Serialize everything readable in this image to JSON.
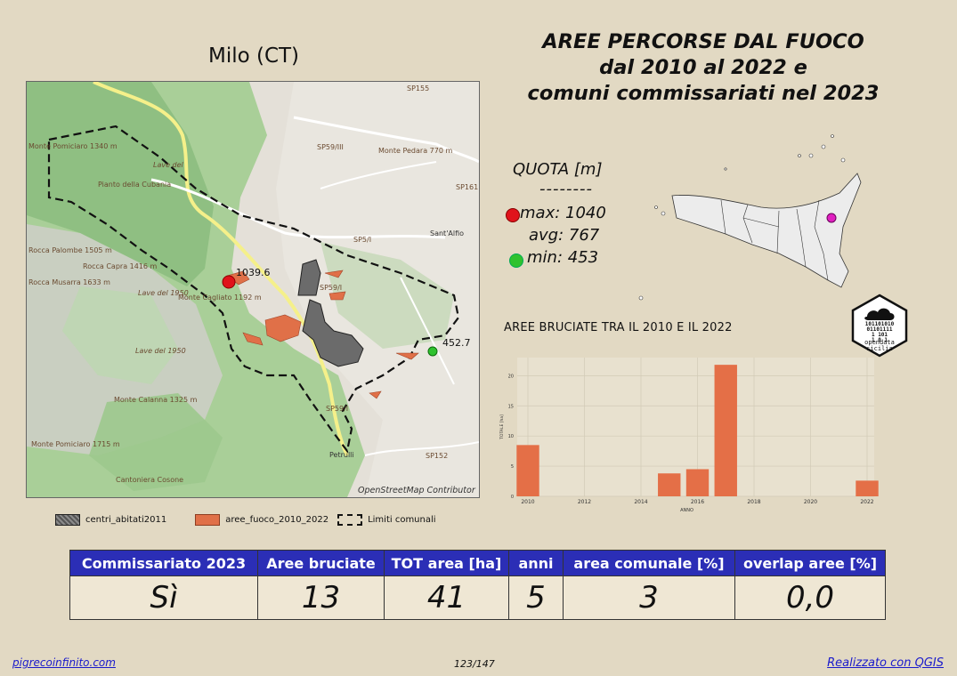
{
  "municipality": "Milo (CT)",
  "title_lines": [
    "AREE PERCORSE DAL FUOCO",
    "dal 2010 al 2022 e",
    "comuni commissariati nel 2023"
  ],
  "quota": {
    "heading": "QUOTA [m]",
    "separator": "--------",
    "max_label": "max: 1040",
    "avg_label": "avg: 767",
    "min_label": "min: 453",
    "max_color": "#e0131b",
    "min_color": "#2fc22f"
  },
  "map": {
    "max_point_label": "1039.6",
    "min_point_label": "452.7",
    "attribution": "OpenStreetMap Contributor",
    "labels": {
      "sp155": "SP155",
      "sp59_iii": "SP59/III",
      "sp161": "SP161",
      "sp5_i": "SP5/I",
      "sp59_ii": "SP59/I",
      "sp59_i": "SP59/I",
      "sp152": "SP152",
      "sant_alfio": "Sant'Alfio",
      "petrulli": "Petrulli",
      "monte_pomiciaro": "Monte Pomiciaro 1340 m",
      "monte_pedara": "Monte Pedara 770 m",
      "rocca_palombe": "Rocca Palombe 1505 m",
      "rocca_capra": "Rocca Capra 1416 m",
      "rocca_musarra": "Rocca Musarra 1633 m",
      "monte_cagliato": "Monte Cagliato 1192 m",
      "monte_calanna": "Monte Calanna 1325 m",
      "monte_pomiciaro2": "Monte Pomiciaro 1715 m",
      "cantoniera_cosone": "Cantoniera Cosone",
      "piano_cubania": "Pianto della Cubania",
      "lave_1950": "Lave del 1950",
      "lave_1950_b": "Lave del 1950",
      "lave_del": "Lave del"
    }
  },
  "legend": {
    "centri": "centri_abitati2011",
    "aree": "aree_fuoco_2010_2022",
    "limiti": "Limiti comunali",
    "aree_color": "#e07048"
  },
  "chart_title": "AREE BRUCIATE TRA IL 2010 E IL 2022",
  "chart_data": {
    "type": "bar",
    "x": [
      2010,
      2011,
      2012,
      2013,
      2014,
      2015,
      2016,
      2017,
      2018,
      2019,
      2020,
      2021,
      2022
    ],
    "values": [
      8.5,
      0,
      0,
      0,
      0,
      3.8,
      4.5,
      21.8,
      0,
      0,
      0,
      0,
      2.6
    ],
    "xticks": [
      "2010",
      "2012",
      "2014",
      "2016",
      "2018",
      "2020",
      "2022"
    ],
    "yticks": [
      "0",
      "5",
      "10",
      "15",
      "20"
    ],
    "xlabel": "ANNO",
    "ylabel": "TOTALE [ha]",
    "ylim": [
      0,
      23
    ],
    "bar_color": "#e46f47",
    "grid": true
  },
  "badge": {
    "bits": [
      "101101010",
      "01101111",
      "1 101",
      "1 0 1"
    ],
    "line1": "opendata",
    "line2": "sicilia"
  },
  "table": {
    "headers": [
      "Commissariato 2023",
      "Aree bruciate",
      "TOT area [ha]",
      "anni",
      "area comunale [%]",
      "overlap aree [%]"
    ],
    "values": [
      "Sì",
      "13",
      "41",
      "5",
      "3",
      "0,0"
    ]
  },
  "footer": {
    "site": "pigrecoinfinito.com",
    "page": "123/147",
    "credit": "Realizzato con QGIS"
  },
  "sicily_marker_color": "#e020c0"
}
